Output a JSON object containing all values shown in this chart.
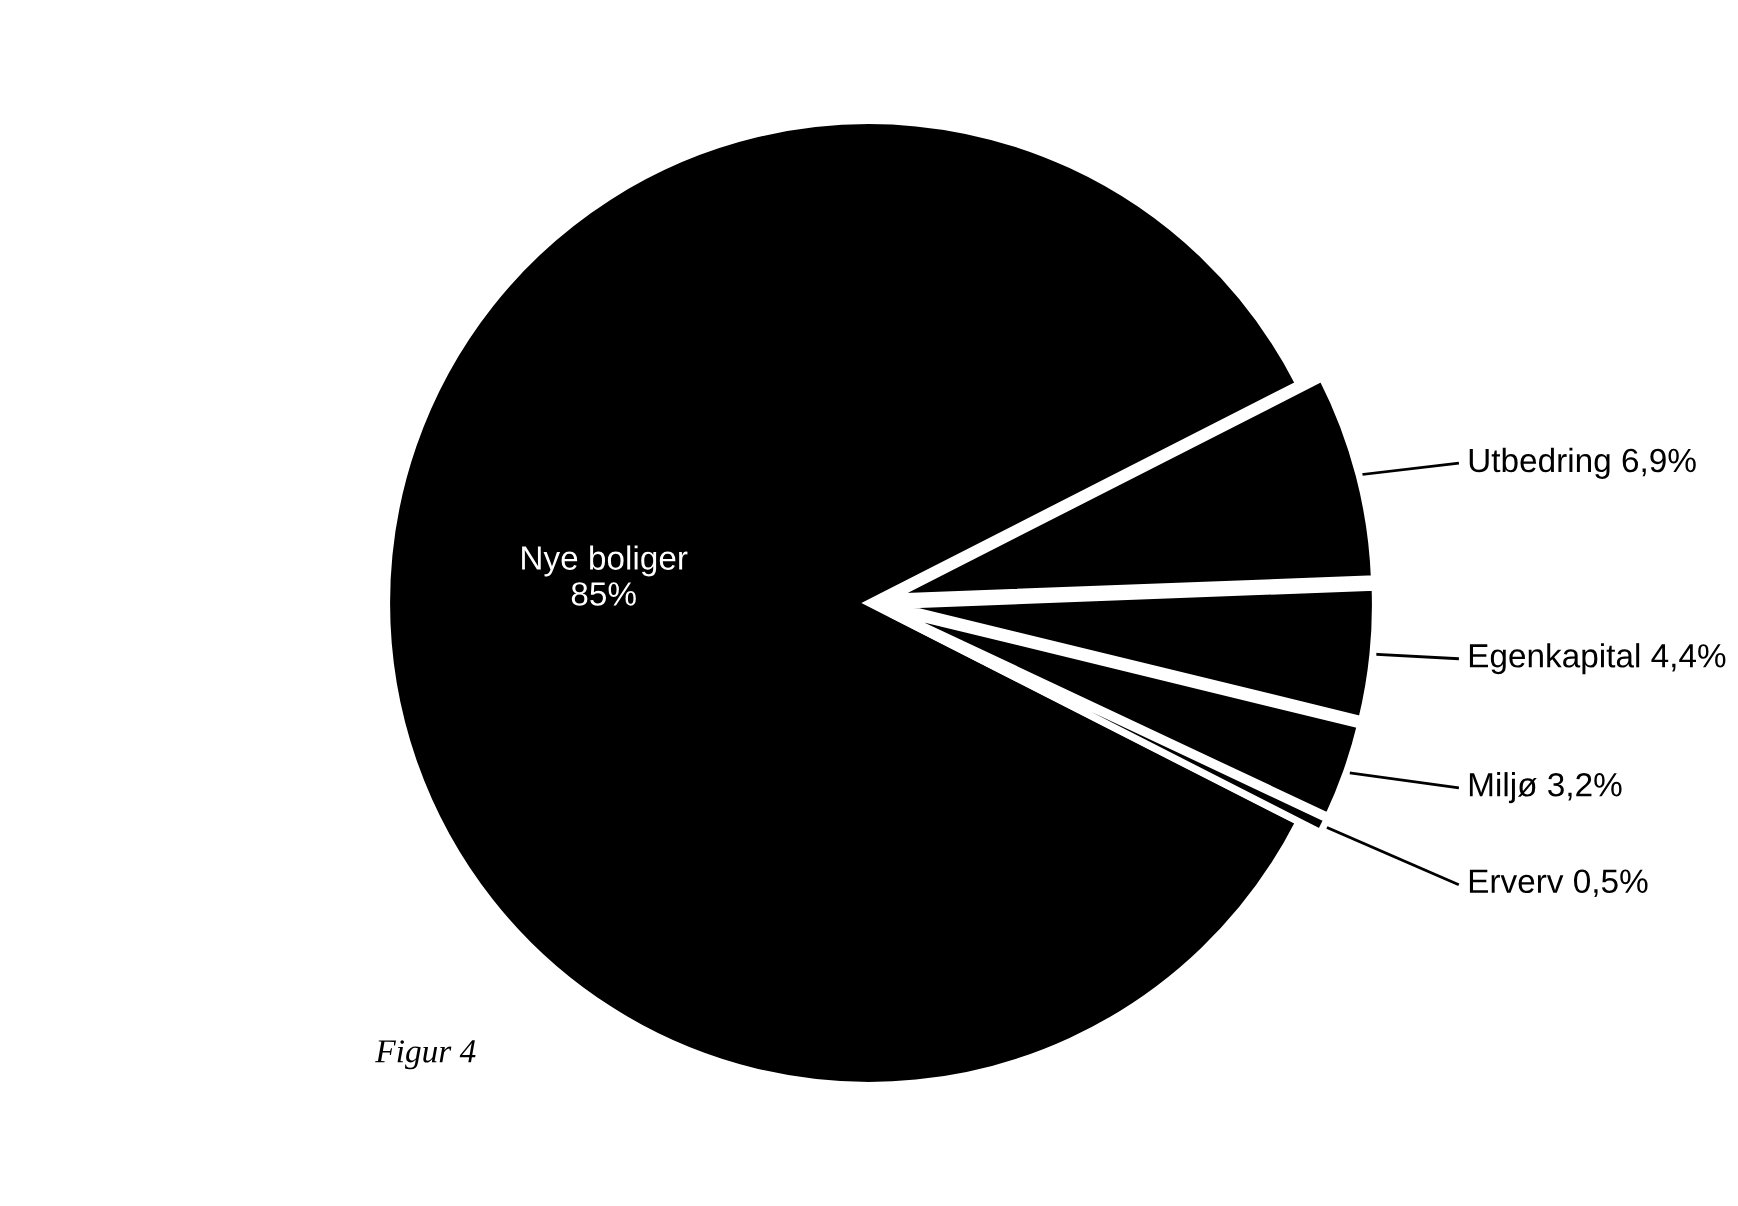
{
  "chart_data": {
    "type": "pie",
    "categories": [
      "Nye boliger",
      "Utbedring",
      "Egenkapital",
      "Miljø",
      "Erverv"
    ],
    "values": [
      85,
      6.9,
      4.4,
      3.2,
      0.5
    ],
    "value_labels": [
      "85%",
      "6,9%",
      "4,4%",
      "3,2%",
      "0,5%"
    ],
    "colors": [
      "#000000",
      "#000000",
      "#000000",
      "#000000",
      "#000000"
    ],
    "annotations": [
      "Figur 4"
    ]
  }
}
